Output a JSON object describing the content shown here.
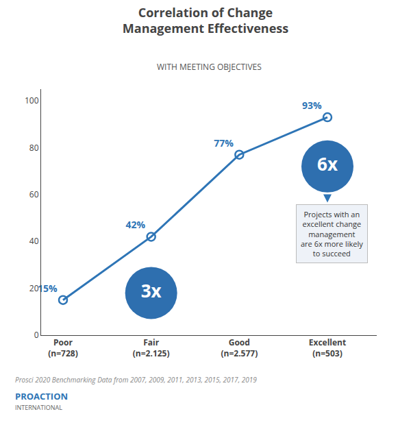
{
  "chart_data": {
    "type": "line",
    "title": "Correlation of Change\nManagement Effectiveness",
    "subtitle": "WITH MEETING OBJECTIVES",
    "categories": [
      "Poor\n(n=728)",
      "Fair\n(n=2.125)",
      "Good\n(n=2.577)",
      "Excellent\n(n=503)"
    ],
    "values": [
      15,
      42,
      77,
      93
    ],
    "value_labels": [
      "15%",
      "42%",
      "77%",
      "93%"
    ],
    "data_labels": true,
    "color": "#2E75B6",
    "marker": "circle-open",
    "ylim": [
      0,
      105
    ],
    "yticks": [
      0,
      20,
      40,
      60,
      80,
      100
    ],
    "grid": false,
    "annotations": [
      {
        "text": "3x",
        "x": 1,
        "y": 18,
        "color": "#2E6FAF"
      },
      {
        "text": "6x",
        "x": 3,
        "y": 72,
        "color": "#2E6FAF"
      },
      {
        "text": "Projects with an\nexcellent change\nmanagement\nare 6x more likely\nto succeed",
        "x": 3.05,
        "y": 56
      }
    ],
    "footer": [
      "Prosci 2020 Benchmarking Data from 2007, 2009, 2011, 2013, 2015, 2017, 2019",
      "PROACTION",
      "INTERNATIONAL"
    ]
  }
}
